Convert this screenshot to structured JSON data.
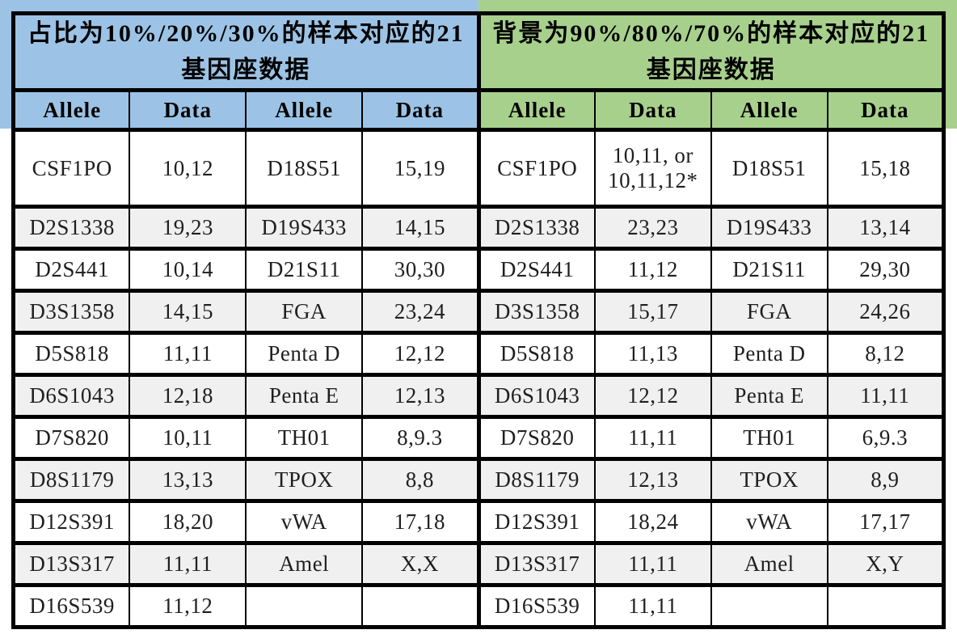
{
  "left_table": {
    "title": "占比为10%/20%/30%的样本对应的21基因座数据",
    "columns": [
      "Allele",
      "Data",
      "Allele",
      "Data"
    ],
    "rows": [
      [
        "CSF1PO",
        "10,12",
        "D18S51",
        "15,19"
      ],
      [
        "D2S1338",
        "19,23",
        "D19S433",
        "14,15"
      ],
      [
        "D2S441",
        "10,14",
        "D21S11",
        "30,30"
      ],
      [
        "D3S1358",
        "14,15",
        "FGA",
        "23,24"
      ],
      [
        "D5S818",
        "11,11",
        "Penta D",
        "12,12"
      ],
      [
        "D6S1043",
        "12,18",
        "Penta E",
        "12,13"
      ],
      [
        "D7S820",
        "10,11",
        "TH01",
        "8,9.3"
      ],
      [
        "D8S1179",
        "13,13",
        "TPOX",
        "8,8"
      ],
      [
        "D12S391",
        "18,20",
        "vWA",
        "17,18"
      ],
      [
        "D13S317",
        "11,11",
        "Amel",
        "X,X"
      ],
      [
        "D16S539",
        "11,12",
        "",
        ""
      ]
    ]
  },
  "right_table": {
    "title": "背景为90%/80%/70%的样本对应的21基因座数据",
    "columns": [
      "Allele",
      "Data",
      "Allele",
      "Data"
    ],
    "rows": [
      [
        "CSF1PO",
        "10,11, or\n10,11,12*",
        "D18S51",
        "15,18"
      ],
      [
        "D2S1338",
        "23,23",
        "D19S433",
        "13,14"
      ],
      [
        "D2S441",
        "11,12",
        "D21S11",
        "29,30"
      ],
      [
        "D3S1358",
        "15,17",
        "FGA",
        "24,26"
      ],
      [
        "D5S818",
        "11,13",
        "Penta D",
        "8,12"
      ],
      [
        "D6S1043",
        "12,12",
        "Penta E",
        "11,11"
      ],
      [
        "D7S820",
        "11,11",
        "TH01",
        "6,9.3"
      ],
      [
        "D8S1179",
        "12,13",
        "TPOX",
        "8,9"
      ],
      [
        "D12S391",
        "18,24",
        "vWA",
        "17,17"
      ],
      [
        "D13S317",
        "11,11",
        "Amel",
        "X,Y"
      ],
      [
        "D16S539",
        "11,11",
        "",
        ""
      ]
    ]
  },
  "colors": {
    "left_header_blue": "#9cc3e5",
    "right_header_green": "#a8d08d",
    "shaded_row_gray": "#f0f0f0",
    "border_black": "#000000"
  }
}
